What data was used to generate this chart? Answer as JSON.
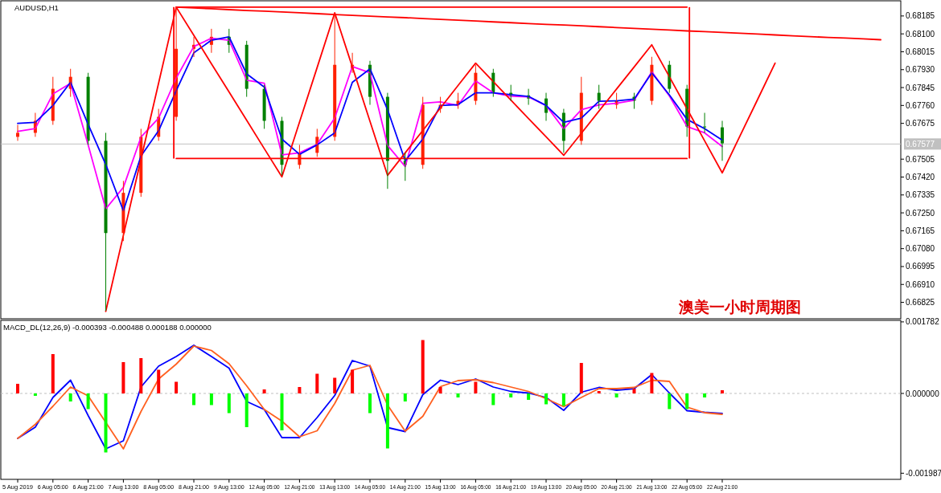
{
  "chart_data": [
    {
      "type": "candlestick",
      "title": "AUDUSD,H1",
      "annotations": [
        "澳美一小时周期图"
      ],
      "tick_labels": "y",
      "categories": [
        null,
        null,
        null,
        null,
        null,
        null,
        null,
        null,
        null,
        null,
        null,
        null,
        null,
        null,
        null,
        null,
        null,
        null,
        null,
        null,
        null,
        null,
        null,
        null,
        null,
        null,
        null,
        null,
        null,
        null,
        null,
        null,
        null,
        null,
        null,
        null,
        null,
        null,
        null,
        null,
        null,
        null,
        null,
        null,
        null,
        null,
        null,
        null,
        null,
        null
      ],
      "ylim": [
        0.66747,
        0.68257
      ],
      "yticks": [
        {
          "value": 0.68185,
          "label": "0.68185"
        },
        {
          "value": 0.681,
          "label": "0.68100"
        },
        {
          "value": 0.68015,
          "label": "0.68015"
        },
        {
          "value": 0.6793,
          "label": "0.67930"
        },
        {
          "value": 0.67845,
          "label": "0.67845"
        },
        {
          "value": 0.6776,
          "label": "0.67760"
        },
        {
          "value": 0.67675,
          "label": "0.67675"
        },
        {
          "value": 0.67505,
          "label": "0.67505"
        },
        {
          "value": 0.6742,
          "label": "0.67420"
        },
        {
          "value": 0.67335,
          "label": "0.67335"
        },
        {
          "value": 0.6725,
          "label": "0.67250"
        },
        {
          "value": 0.67165,
          "label": "0.67165"
        },
        {
          "value": 0.6708,
          "label": "0.67080"
        },
        {
          "value": 0.66995,
          "label": "0.66995"
        },
        {
          "value": 0.6691,
          "label": "0.66910"
        },
        {
          "value": 0.66825,
          "label": "0.66825"
        }
      ],
      "ref_lines": [
        {
          "axis": "y",
          "value": 0.67577,
          "label": "0.67577",
          "color": "#c0c0c0"
        }
      ],
      "ohlc": [
        [
          0.67611,
          0.67668,
          0.67592,
          0.6763
        ],
        [
          0.6763,
          0.67725,
          0.67611,
          0.67687
        ],
        [
          0.67687,
          0.67896,
          0.67668,
          0.67839
        ],
        [
          0.67839,
          0.67934,
          0.67801,
          0.67896
        ],
        [
          0.67896,
          0.67915,
          0.67573,
          0.67592
        ],
        [
          0.67592,
          0.6763,
          0.66785,
          0.67154
        ],
        [
          0.67154,
          0.67402,
          0.67116,
          0.67345
        ],
        [
          0.67345,
          0.67649,
          0.67326,
          0.67611
        ],
        [
          0.67611,
          0.67744,
          0.67592,
          0.67706
        ],
        [
          0.67706,
          0.68227,
          0.67687,
          0.68029
        ],
        [
          0.68029,
          0.68086,
          0.6799,
          0.68048
        ],
        [
          0.68048,
          0.68124,
          0.6801,
          0.68086
        ],
        [
          0.68086,
          0.68124,
          0.6801,
          0.68048
        ],
        [
          0.68048,
          0.68067,
          0.67801,
          0.67839
        ],
        [
          0.67839,
          0.67858,
          0.67649,
          0.67687
        ],
        [
          0.67687,
          0.67706,
          0.67428,
          0.67478
        ],
        [
          0.67478,
          0.67573,
          0.67459,
          0.67535
        ],
        [
          0.67535,
          0.67649,
          0.67516,
          0.67611
        ],
        [
          0.67611,
          0.68193,
          0.67592,
          0.67953
        ],
        [
          0.67934,
          0.6801,
          0.67915,
          0.67953
        ],
        [
          0.67953,
          0.67972,
          0.67763,
          0.67801
        ],
        [
          0.67801,
          0.6782,
          0.67364,
          0.67497
        ],
        [
          0.67497,
          0.67535,
          0.67402,
          0.67478
        ],
        [
          0.67478,
          0.67801,
          0.67459,
          0.67763
        ],
        [
          0.67744,
          0.67801,
          0.67725,
          0.67763
        ],
        [
          0.67763,
          0.6782,
          0.67744,
          0.67782
        ],
        [
          0.67782,
          0.67953,
          0.67763,
          0.67915
        ],
        [
          0.67915,
          0.67934,
          0.67801,
          0.6782
        ],
        [
          0.6782,
          0.67858,
          0.67782,
          0.67808
        ],
        [
          0.67808,
          0.67839,
          0.67763,
          0.67793
        ],
        [
          0.67793,
          0.6782,
          0.67687,
          0.67725
        ],
        [
          0.67725,
          0.67744,
          0.67535,
          0.67592
        ],
        [
          0.67592,
          0.67896,
          0.67573,
          0.6782
        ],
        [
          0.6782,
          0.67858,
          0.67744,
          0.67782
        ],
        [
          0.67763,
          0.6782,
          0.67744,
          0.67782
        ],
        [
          0.67801,
          0.6782,
          0.67744,
          0.67782
        ],
        [
          0.67782,
          0.67991,
          0.67763,
          0.67953
        ],
        [
          0.67953,
          0.67972,
          0.6782,
          0.67839
        ],
        [
          0.67839,
          0.67858,
          0.67611,
          0.6766
        ],
        [
          0.6766,
          0.67725,
          0.6763,
          0.67656
        ],
        [
          0.67656,
          0.67687,
          0.67497,
          0.6758
        ],
        null,
        null,
        null,
        null,
        null,
        null,
        null,
        null,
        null
      ],
      "colors": [
        "#ff2000",
        "#ff2000",
        "#ff2000",
        "#ff2000",
        "#008000",
        "#008000",
        "#ff2000",
        "#ff2000",
        "#ff2000",
        "#ff2000",
        "#ff2000",
        "#ff2000",
        "#008000",
        "#008000",
        "#008000",
        "#008000",
        "#ff2000",
        "#ff2000",
        "#ff2000",
        "#ff2000",
        "#008000",
        "#008000",
        "#008000",
        "#ff2000",
        "#ff2000",
        "#ff2000",
        "#ff2000",
        "#008000",
        "#008000",
        "#008000",
        "#008000",
        "#008000",
        "#ff2000",
        "#008000",
        "#ff2000",
        "#008000",
        "#ff2000",
        "#008000",
        "#008000",
        "#008000",
        "#008000",
        null,
        null,
        null,
        null,
        null,
        null,
        null,
        null,
        null
      ],
      "series": [
        {
          "type": "line",
          "color": "#ff00ff",
          "values": [
            0.67637,
            0.6765,
            0.67815,
            0.67865,
            0.67573,
            0.67269,
            0.67371,
            0.6761,
            0.677,
            0.6789,
            0.6804,
            0.68079,
            0.6807,
            0.6788,
            0.67866,
            0.67525,
            0.67535,
            0.67575,
            0.677,
            0.67945,
            0.67915,
            0.6757,
            0.6747,
            0.6777,
            0.67777,
            0.6776,
            0.67877,
            0.6782,
            0.67804,
            0.67801,
            0.6776,
            0.67649,
            0.6774,
            0.67763,
            0.6777,
            0.67785,
            0.6792,
            0.67805,
            0.6766,
            0.6763,
            0.67565,
            null,
            null,
            null,
            null,
            null,
            null,
            null,
            null,
            null
          ]
        },
        {
          "type": "line",
          "color": "#0000ff",
          "values": [
            0.67675,
            0.6768,
            0.6776,
            0.6787,
            0.6767,
            0.6748,
            0.6726,
            0.6752,
            0.6764,
            0.6783,
            0.6801,
            0.6807,
            0.68086,
            0.6791,
            0.67847,
            0.676,
            0.67528,
            0.67573,
            0.6763,
            0.6787,
            0.67934,
            0.6774,
            0.67497,
            0.676,
            0.6776,
            0.67764,
            0.6782,
            0.6782,
            0.67811,
            0.67803,
            0.6776,
            0.6768,
            0.677,
            0.6778,
            0.67782,
            0.6779,
            0.67915,
            0.6781,
            0.67694,
            0.6765,
            0.67595,
            null,
            null,
            null,
            null,
            null,
            null,
            null,
            null,
            null
          ]
        },
        {
          "type": "line",
          "color": "#ff0000",
          "values": [
            null,
            null,
            null,
            null,
            null,
            0.66782,
            0.67143,
            0.67505,
            0.67866,
            0.68227,
            0.68093,
            0.67958,
            0.67824,
            0.6769,
            0.67555,
            0.67421,
            0.67681,
            0.6794,
            0.682,
            0.67943,
            0.67685,
            0.67428,
            0.67535,
            0.67641,
            0.67748,
            0.67855,
            0.67961,
            0.67873,
            0.67786,
            0.67698,
            0.67611,
            0.67523,
            0.67628,
            0.67733,
            0.67838,
            0.67943,
            0.68048,
            0.67896,
            0.67744,
            0.67592,
            0.6744,
            0.67614,
            0.67787,
            0.67961,
            null,
            null,
            null,
            null,
            null,
            null
          ]
        },
        {
          "type": "line",
          "color": "#ff0000",
          "values": [
            null,
            null,
            null,
            null,
            null,
            null,
            null,
            null,
            null,
            0.68227,
            0.68227,
            0.68227,
            0.68227,
            0.68227,
            0.68227,
            0.68227,
            0.68227,
            0.68227,
            0.68227,
            0.68227,
            0.68227,
            0.68227,
            0.68227,
            0.68227,
            0.68227,
            0.68227,
            0.68227,
            0.68227,
            0.68227,
            0.68227,
            0.68227,
            0.68227,
            0.68227,
            0.68227,
            0.68227,
            0.68227,
            0.68227,
            0.68227,
            0.68227,
            null,
            null,
            null,
            null,
            null,
            null,
            null,
            null,
            null,
            null,
            null
          ]
        },
        {
          "type": "line",
          "color": "#ff0000",
          "values": [
            null,
            null,
            null,
            null,
            null,
            null,
            null,
            null,
            null,
            0.67508,
            0.67508,
            0.67508,
            0.67508,
            0.67508,
            0.67508,
            0.67508,
            0.67508,
            0.67508,
            0.67508,
            0.67508,
            0.67508,
            0.67508,
            0.67508,
            0.67508,
            0.67508,
            0.67508,
            0.67508,
            0.67508,
            0.67508,
            0.67508,
            0.67508,
            0.67508,
            0.67508,
            0.67508,
            0.67508,
            0.67508,
            0.67508,
            0.67508,
            0.67508,
            null,
            null,
            null,
            null,
            null,
            null,
            null,
            null,
            null,
            null,
            null
          ]
        },
        {
          "type": "line",
          "color": "#ff0000",
          "values": [
            null,
            null,
            null,
            null,
            null,
            null,
            null,
            null,
            null,
            0.68227,
            0.68223,
            0.68219,
            0.68215,
            0.68211,
            0.68208,
            0.68204,
            0.682,
            0.68196,
            0.68192,
            0.68188,
            0.68184,
            0.6818,
            0.68177,
            0.68173,
            0.68169,
            0.68165,
            0.68161,
            0.68157,
            0.68153,
            0.68149,
            0.68145,
            0.68142,
            0.68138,
            0.68134,
            0.6813,
            0.68126,
            0.68122,
            0.68118,
            0.68114,
            0.68111,
            0.68107,
            0.68103,
            0.68099,
            0.68095,
            0.68091,
            0.68087,
            0.68083,
            0.6808,
            0.68076,
            0.68072
          ]
        }
      ]
    },
    {
      "type": "bar",
      "title": "MACD_DL(12,26,9) -0.000393 -0.000488 0.000188 0.000000",
      "categories": [
        "5 Aug 2019",
        null,
        "6 Aug 05:00",
        null,
        "6 Aug 21:00",
        null,
        "7 Aug 13:00",
        null,
        "8 Aug 05:00",
        null,
        "8 Aug 21:00",
        null,
        "9 Aug 13:00",
        null,
        "12 Aug 05:00",
        null,
        "12 Aug 21:00",
        null,
        "13 Aug 13:00",
        null,
        "14 Aug 05:00",
        null,
        "14 Aug 21:00",
        null,
        "15 Aug 13:00",
        null,
        "16 Aug 05:00",
        null,
        "16 Aug 21:00",
        null,
        "19 Aug 13:00",
        null,
        "20 Aug 05:00",
        null,
        "20 Aug 21:00",
        null,
        "21 Aug 13:00",
        null,
        "22 Aug 05:00",
        null,
        "22 Aug 21:00",
        null,
        null,
        null,
        null,
        null,
        null,
        null,
        null,
        null
      ],
      "ylim": [
        -0.00214,
        0.00182
      ],
      "yticks": [
        {
          "value": 0.001782,
          "label": "0.001782"
        },
        {
          "value": 0,
          "label": "0.000000"
        },
        {
          "value": -0.001987,
          "label": "-0.001987"
        }
      ],
      "ref_lines": [
        {
          "axis": "y",
          "value": 0,
          "color": "#c0c0c0",
          "line_style": "dashed"
        }
      ],
      "series": [
        {
          "type": "bar",
          "color": "#ff0000",
          "values": [
            0.00024,
            null,
            0.00098,
            null,
            null,
            null,
            0.00078,
            0.00088,
            0.00059,
            0.00029,
            null,
            null,
            null,
            null,
            0.0001,
            null,
            0.00016,
            0.00049,
            0.00039,
            0.00059,
            null,
            null,
            null,
            0.00133,
            0.00016,
            null,
            0.00029,
            null,
            null,
            null,
            null,
            null,
            0.00076,
            6e-05,
            null,
            0.00012,
            0.00051,
            null,
            null,
            null,
            8e-05,
            null,
            null,
            null,
            null,
            null,
            null,
            null,
            null,
            null
          ]
        },
        {
          "type": "bar",
          "color": "#00ff00",
          "values": [
            null,
            -6e-05,
            null,
            -0.0002,
            -0.00039,
            -0.00147,
            null,
            null,
            null,
            null,
            -0.00029,
            -0.00029,
            -0.00049,
            -0.00084,
            null,
            -0.00092,
            null,
            null,
            null,
            null,
            -0.00049,
            -0.00137,
            -0.0002,
            null,
            null,
            -0.0001,
            null,
            -0.00029,
            -0.0001,
            -0.00016,
            -0.00027,
            -0.00031,
            null,
            null,
            -0.0001,
            null,
            null,
            -0.00039,
            -0.00039,
            -0.0001,
            null,
            null,
            null,
            null,
            null,
            null,
            null,
            null,
            null,
            null
          ]
        },
        {
          "type": "line",
          "color": "#0000ff",
          "values": [
            -0.00112,
            -0.00084,
            -0.0001,
            0.00033,
            -0.00055,
            -0.00138,
            -0.00118,
            0.00016,
            0.00068,
            0.00092,
            0.0012,
            0.00092,
            0.00063,
            -0.0002,
            -0.0004,
            -0.0011,
            -0.0011,
            -0.0006,
            -5e-05,
            0.00082,
            0.00068,
            -0.00085,
            -0.00095,
            -3e-05,
            0.00033,
            0.00022,
            0.00036,
            0.00016,
            5e-05,
            1e-05,
            -0.0001,
            -0.00042,
            3e-05,
            0.00015,
            8e-05,
            0.00012,
            0.00047,
            1e-05,
            -0.00043,
            -0.00047,
            -0.0005,
            null,
            null,
            null,
            null,
            null,
            null,
            null,
            null,
            null
          ]
        },
        {
          "type": "line",
          "color": "#ff6020",
          "values": [
            -0.00112,
            -0.00077,
            -0.00032,
            0.00016,
            -6e-05,
            -0.00072,
            -0.00138,
            -0.00045,
            0.00036,
            0.00073,
            0.00118,
            0.00107,
            0.00074,
            0.00019,
            -0.0004,
            -0.00069,
            -0.00108,
            -0.00093,
            -0.00025,
            0.00058,
            0.0007,
            -0.00029,
            -0.00094,
            -0.00057,
            0.00017,
            0.00032,
            0.00034,
            0.00027,
            0.00016,
            5e-05,
            -0.00013,
            -0.00033,
            -0.0001,
            0.00012,
            0.00012,
            0.00015,
            0.00033,
            0.0003,
            -0.00034,
            -0.00048,
            -0.00052,
            null,
            null,
            null,
            null,
            null,
            null,
            null,
            null,
            null
          ]
        }
      ]
    }
  ]
}
